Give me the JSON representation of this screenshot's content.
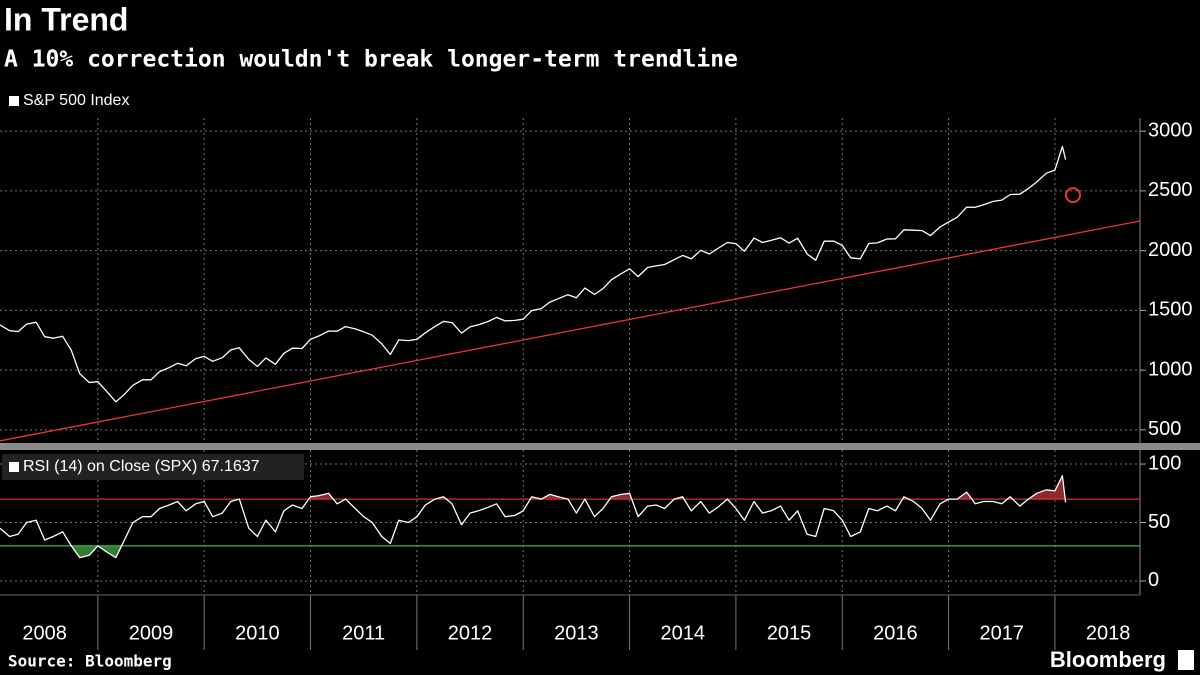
{
  "chart_data": {
    "type": "line",
    "title": "In Trend",
    "subtitle": "A 10% correction wouldn't break longer-term trendline",
    "source": "Source: Bloomberg",
    "brand": "Bloomberg",
    "x": [
      2008.08,
      2008.17,
      2008.25,
      2008.33,
      2008.42,
      2008.5,
      2008.58,
      2008.67,
      2008.75,
      2008.83,
      2008.92,
      2009,
      2009.08,
      2009.17,
      2009.25,
      2009.33,
      2009.42,
      2009.5,
      2009.58,
      2009.67,
      2009.75,
      2009.83,
      2009.92,
      2010,
      2010.08,
      2010.17,
      2010.25,
      2010.33,
      2010.42,
      2010.5,
      2010.58,
      2010.67,
      2010.75,
      2010.83,
      2010.92,
      2011,
      2011.08,
      2011.17,
      2011.25,
      2011.33,
      2011.42,
      2011.5,
      2011.58,
      2011.67,
      2011.75,
      2011.83,
      2011.92,
      2012,
      2012.08,
      2012.17,
      2012.25,
      2012.33,
      2012.42,
      2012.5,
      2012.58,
      2012.67,
      2012.75,
      2012.83,
      2012.92,
      2013,
      2013.08,
      2013.17,
      2013.25,
      2013.33,
      2013.42,
      2013.5,
      2013.58,
      2013.67,
      2013.75,
      2013.83,
      2013.92,
      2014,
      2014.08,
      2014.17,
      2014.25,
      2014.33,
      2014.42,
      2014.5,
      2014.58,
      2014.67,
      2014.75,
      2014.83,
      2014.92,
      2015,
      2015.08,
      2015.17,
      2015.25,
      2015.33,
      2015.42,
      2015.5,
      2015.58,
      2015.67,
      2015.75,
      2015.83,
      2015.92,
      2016,
      2016.08,
      2016.17,
      2016.25,
      2016.33,
      2016.42,
      2016.5,
      2016.58,
      2016.67,
      2016.75,
      2016.83,
      2016.92,
      2017,
      2017.08,
      2017.17,
      2017.25,
      2017.33,
      2017.42,
      2017.5,
      2017.58,
      2017.67,
      2017.75,
      2017.83,
      2017.92,
      2018,
      2018.07,
      2018.1
    ],
    "series": [
      {
        "name": "S&P 500 Index",
        "color": "#ffffff",
        "axis": "y",
        "values": [
          1378,
          1330,
          1322,
          1385,
          1400,
          1280,
          1267,
          1283,
          1166,
          969,
          896,
          903,
          826,
          735,
          798,
          873,
          919,
          919,
          987,
          1021,
          1057,
          1036,
          1096,
          1115,
          1074,
          1104,
          1169,
          1187,
          1089,
          1031,
          1102,
          1049,
          1141,
          1183,
          1181,
          1258,
          1286,
          1327,
          1326,
          1364,
          1345,
          1321,
          1292,
          1219,
          1131,
          1253,
          1247,
          1258,
          1312,
          1366,
          1408,
          1398,
          1310,
          1362,
          1379,
          1407,
          1441,
          1412,
          1416,
          1426,
          1498,
          1515,
          1569,
          1598,
          1631,
          1606,
          1686,
          1633,
          1682,
          1757,
          1806,
          1848,
          1783,
          1859,
          1872,
          1884,
          1924,
          1960,
          1931,
          2003,
          1972,
          2018,
          2068,
          2059,
          1995,
          2105,
          2068,
          2086,
          2107,
          2063,
          2104,
          1972,
          1920,
          2079,
          2080,
          2044,
          1940,
          1932,
          2060,
          2065,
          2097,
          2099,
          2174,
          2171,
          2168,
          2126,
          2199,
          2239,
          2279,
          2364,
          2363,
          2384,
          2412,
          2423,
          2470,
          2472,
          2519,
          2575,
          2648,
          2674,
          2872,
          2762
        ]
      },
      {
        "name": "RSI (14) on Close (SPX) 67.1637",
        "color": "#ffffff",
        "axis": "y2",
        "values": [
          45,
          38,
          40,
          50,
          52,
          35,
          38,
          42,
          30,
          20,
          22,
          30,
          25,
          20,
          35,
          50,
          55,
          55,
          62,
          65,
          68,
          60,
          66,
          68,
          55,
          58,
          68,
          70,
          45,
          38,
          52,
          42,
          60,
          65,
          62,
          72,
          73,
          75,
          66,
          70,
          62,
          55,
          50,
          38,
          32,
          52,
          50,
          55,
          65,
          70,
          72,
          66,
          48,
          58,
          60,
          63,
          66,
          55,
          56,
          60,
          72,
          70,
          74,
          72,
          70,
          58,
          70,
          55,
          62,
          72,
          74,
          75,
          55,
          64,
          65,
          62,
          70,
          72,
          60,
          68,
          58,
          63,
          70,
          62,
          52,
          68,
          58,
          60,
          64,
          52,
          60,
          40,
          38,
          62,
          60,
          52,
          38,
          42,
          62,
          60,
          64,
          60,
          72,
          68,
          62,
          52,
          66,
          70,
          70,
          76,
          66,
          68,
          68,
          66,
          72,
          64,
          70,
          75,
          78,
          77,
          90,
          67.1637
        ]
      }
    ],
    "trendline": {
      "x": [
        2008.08,
        2018.8
      ],
      "values": [
        408,
        2248
      ],
      "color": "#e8343f"
    },
    "marker": {
      "x": 2018.17,
      "value": 2465,
      "color": "#e8343f"
    },
    "reference_lines": [
      {
        "value": 70,
        "axis": "y2",
        "color": "#d0323a",
        "fill": "#8c2a2f"
      },
      {
        "value": 30,
        "axis": "y2",
        "color": "#3bb54a",
        "fill": "#2e7d32"
      }
    ],
    "xlim": [
      2008.08,
      2018.8
    ],
    "xticks": [
      {
        "value": 2008.5,
        "label": "2008"
      },
      {
        "value": 2009.5,
        "label": "2009"
      },
      {
        "value": 2010.5,
        "label": "2010"
      },
      {
        "value": 2011.5,
        "label": "2011"
      },
      {
        "value": 2012.5,
        "label": "2012"
      },
      {
        "value": 2013.5,
        "label": "2013"
      },
      {
        "value": 2014.5,
        "label": "2014"
      },
      {
        "value": 2015.5,
        "label": "2015"
      },
      {
        "value": 2016.5,
        "label": "2016"
      },
      {
        "value": 2017.5,
        "label": "2017"
      },
      {
        "value": 2018.5,
        "label": "2018"
      }
    ],
    "xgrid": [
      2009,
      2010,
      2011,
      2012,
      2013,
      2014,
      2015,
      2016,
      2017,
      2018
    ],
    "ylim": [
      390,
      3110
    ],
    "yticks": [
      500,
      1000,
      1500,
      2000,
      2500,
      3000
    ],
    "y2lim": [
      -12,
      112
    ],
    "y2ticks": [
      0,
      50,
      100
    ],
    "grid": true
  }
}
